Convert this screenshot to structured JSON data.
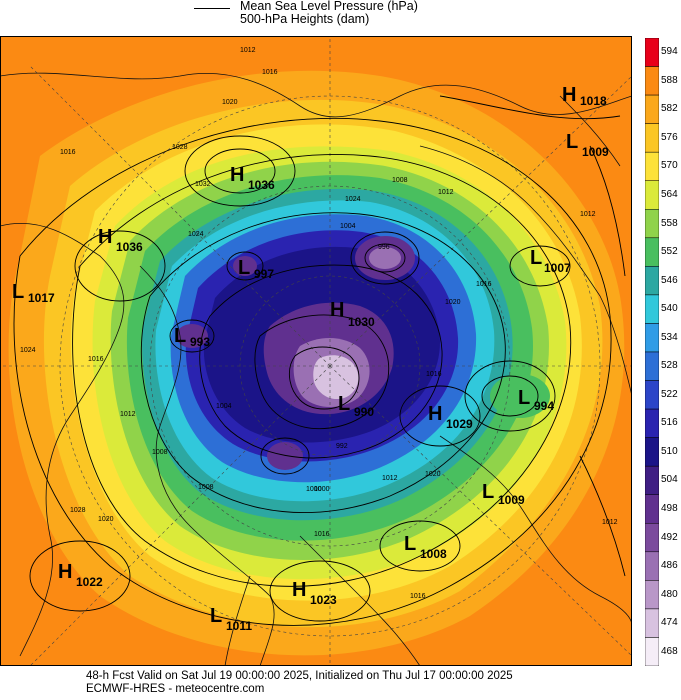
{
  "legend": {
    "mslp_label": "Mean Sea Level Pressure (hPa)",
    "heights_label": "500-hPa Heights (dam)"
  },
  "colorbar": {
    "levels": [
      "594",
      "588",
      "582",
      "576",
      "570",
      "564",
      "558",
      "552",
      "546",
      "540",
      "534",
      "528",
      "522",
      "516",
      "510",
      "504",
      "498",
      "492",
      "486",
      "480",
      "474",
      "468"
    ],
    "colors": [
      "#e8001a",
      "#fb8a13",
      "#fba81b",
      "#fbc624",
      "#fde239",
      "#dbea3a",
      "#90d34a",
      "#49bf5f",
      "#2ca8a2",
      "#31c8db",
      "#2f9ce6",
      "#2d6fd6",
      "#2c45c8",
      "#2a23b0",
      "#1b1488",
      "#3f1e84",
      "#60308f",
      "#7b4a9d",
      "#9a70b3",
      "#b997c8",
      "#d8c2e0",
      "#f5edf7"
    ]
  },
  "pressure_centers": [
    {
      "type": "H",
      "value": "1036",
      "id": "h1036-north"
    },
    {
      "type": "H",
      "value": "1036",
      "id": "h1036-west"
    },
    {
      "type": "L",
      "value": "1017",
      "id": "l1017"
    },
    {
      "type": "H",
      "value": "1018",
      "id": "h1018"
    },
    {
      "type": "L",
      "value": "1009",
      "id": "l1009-ne"
    },
    {
      "type": "L",
      "value": "1007",
      "id": "l1007"
    },
    {
      "type": "L",
      "value": "997",
      "id": "l997"
    },
    {
      "type": "L",
      "value": "993",
      "id": "l993"
    },
    {
      "type": "H",
      "value": "1030",
      "id": "h1030"
    },
    {
      "type": "L",
      "value": "990",
      "id": "l990"
    },
    {
      "type": "H",
      "value": "1029",
      "id": "h1029"
    },
    {
      "type": "L",
      "value": "994",
      "id": "l994"
    },
    {
      "type": "L",
      "value": "1009",
      "id": "l1009-se"
    },
    {
      "type": "L",
      "value": "1008",
      "id": "l1008"
    },
    {
      "type": "H",
      "value": "1022",
      "id": "h1022"
    },
    {
      "type": "H",
      "value": "1023",
      "id": "h1023"
    },
    {
      "type": "L",
      "value": "1011",
      "id": "l1011"
    }
  ],
  "isobar_labels": [
    "1012",
    "1016",
    "1020",
    "1028",
    "1032",
    "1024",
    "1008",
    "1000",
    "996",
    "992",
    "1004",
    "1012",
    "1016",
    "1020",
    "1024",
    "1016",
    "1012",
    "1008",
    "1004",
    "1000",
    "1016",
    "1012",
    "1016",
    "1020",
    "1024",
    "1028",
    "1016",
    "1012",
    "1020",
    "1012",
    "1008",
    "1016"
  ],
  "footer": {
    "line1": "48-h Fcst Valid on Sat Jul 19 00:00:00 2025, Initialized on Thu Jul 17 00:00:00 2025",
    "line2": "ECMWF-HRES  - meteocentre.com"
  }
}
